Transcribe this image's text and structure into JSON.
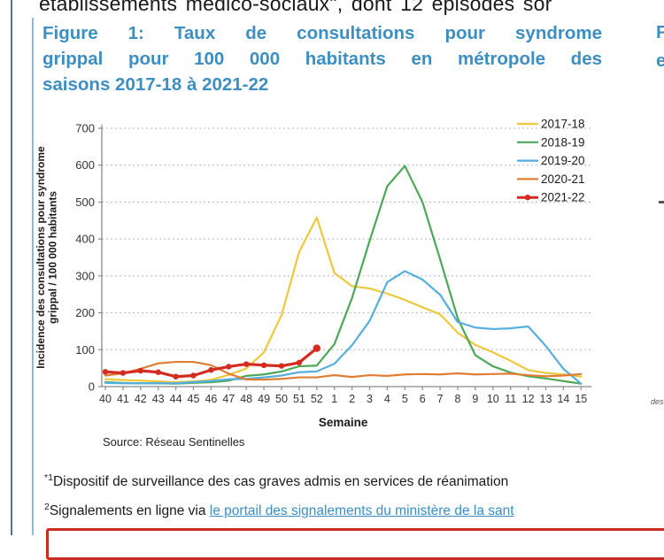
{
  "top_fragment": "établissements médico-sociaux\", dont 12 épisodes sor",
  "figure1": {
    "title_lines": [
      "Figure 1: Taux de consultations pour syndrome",
      "grippal pour 100 000 habitants en métropole des",
      "saisons 2017-18 à 2021-22"
    ],
    "source": "Source: Réseau Sentinelles"
  },
  "right_column_fragments": {
    "title_line1": "F",
    "title_line2": "e",
    "small_text": "des"
  },
  "footnotes": [
    {
      "marker": "*1",
      "text": "Dispositif de surveillance des cas graves admis en services de réanimation",
      "link": ""
    },
    {
      "marker": "2",
      "text": "Signalements en ligne via ",
      "link": "le portail des signalements du ministère de la sant"
    }
  ],
  "colors": {
    "heading_blue": "#3D8EC1",
    "link_blue": "#3A8DC3",
    "red_box_border": "#CB2C24",
    "axis_gray": "#8a8a8a",
    "grid_gray": "#b5b5b5",
    "tick_text": "#333333"
  },
  "chart_data": {
    "type": "line",
    "title": "",
    "xlabel": "Semaine",
    "ylabel": "Incidence des consultations pour syndrome grippal / 100 000 habitants",
    "ylabel_lines": [
      "Incidence des consultations pour syndrome",
      "grippal / 100 000 habitants"
    ],
    "ylim": [
      0,
      700
    ],
    "ytick_step": 100,
    "grid": "horizontal-dotted",
    "legend_position": "top-right",
    "categories": [
      "40",
      "41",
      "42",
      "43",
      "44",
      "45",
      "46",
      "47",
      "48",
      "49",
      "50",
      "51",
      "52",
      "1",
      "2",
      "3",
      "4",
      "5",
      "6",
      "7",
      "8",
      "9",
      "10",
      "11",
      "12",
      "13",
      "14",
      "15"
    ],
    "series": [
      {
        "name": "2017-18",
        "color": "#EDC83C",
        "width": 2.2,
        "marker": false,
        "values": [
          20,
          18,
          16,
          14,
          12,
          14,
          18,
          32,
          49,
          93,
          194,
          365,
          458,
          308,
          272,
          266,
          252,
          235,
          215,
          196,
          146,
          113,
          93,
          70,
          45,
          37,
          33,
          27
        ]
      },
      {
        "name": "2018-19",
        "color": "#4CA858",
        "width": 2.2,
        "marker": false,
        "values": [
          12,
          10,
          9,
          9,
          8,
          10,
          12,
          16,
          29,
          33,
          41,
          55,
          57,
          115,
          240,
          395,
          543,
          598,
          500,
          345,
          185,
          85,
          55,
          38,
          28,
          22,
          15,
          8
        ]
      },
      {
        "name": "2019-20",
        "color": "#56AEDE",
        "width": 2.2,
        "marker": false,
        "values": [
          10,
          9,
          9,
          9,
          9,
          12,
          15,
          20,
          21,
          25,
          30,
          39,
          41,
          62,
          112,
          178,
          283,
          313,
          290,
          249,
          175,
          160,
          156,
          158,
          163,
          110,
          48,
          8
        ]
      },
      {
        "name": "2020-21",
        "color": "#E07D35",
        "width": 2.2,
        "marker": false,
        "values": [
          30,
          36,
          48,
          63,
          67,
          67,
          58,
          35,
          19,
          19,
          21,
          25,
          25,
          31,
          26,
          31,
          29,
          33,
          34,
          33,
          36,
          33,
          34,
          35,
          31,
          28,
          30,
          34
        ]
      },
      {
        "name": "2021-22",
        "color": "#D42B20",
        "width": 3.2,
        "marker": true,
        "values": [
          40,
          37,
          43,
          39,
          27,
          30,
          45,
          54,
          61,
          58,
          56,
          65,
          104
        ]
      }
    ]
  }
}
